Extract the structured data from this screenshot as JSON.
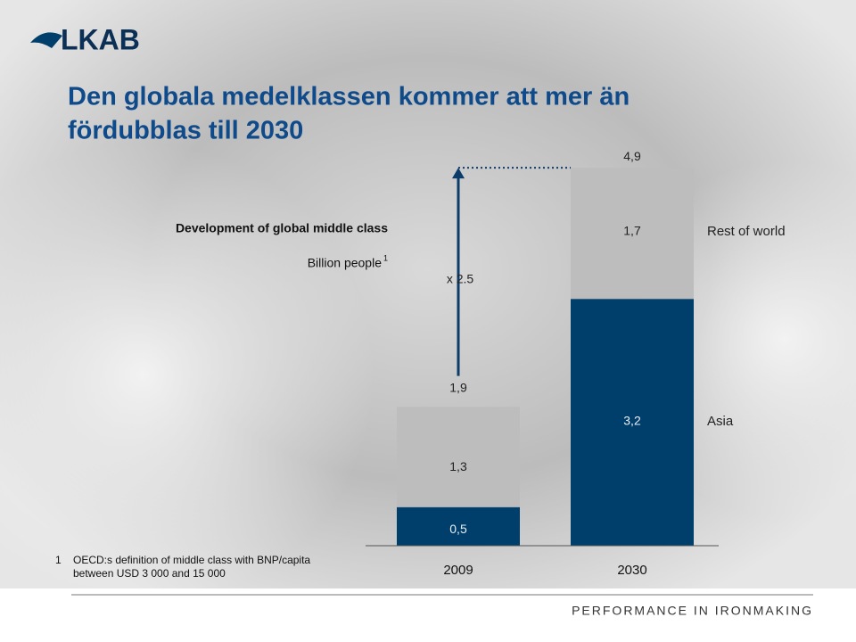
{
  "logo": "LKAB",
  "footer": "PERFORMANCE IN IRONMAKING",
  "chart_data": {
    "type": "stacked-bar",
    "title": [
      "Den globala medelklassen kommer att mer än",
      "fördubblas till 2030"
    ],
    "subtitle": "Development of global middle class",
    "unit": "Billion people",
    "categories": [
      "2009",
      "2030"
    ],
    "series": [
      {
        "name": "Asia",
        "color": "#003f6b",
        "values": [
          0.5,
          3.2
        ],
        "value_labels": [
          "0,5",
          "3,2"
        ]
      },
      {
        "name": "Rest of world",
        "color": "#bdbdbd",
        "values": [
          1.3,
          1.7
        ],
        "value_labels": [
          "1,3",
          "1,7"
        ]
      }
    ],
    "totals": [
      1.9,
      4.9
    ],
    "total_labels": [
      "1,9",
      "4,9"
    ],
    "annotation": "x 2.5",
    "footnote": {
      "marker": "1",
      "lines": [
        "OECD:s definition of middle class with BNP/capita",
        "between USD 3 000 and 15 000"
      ]
    }
  }
}
